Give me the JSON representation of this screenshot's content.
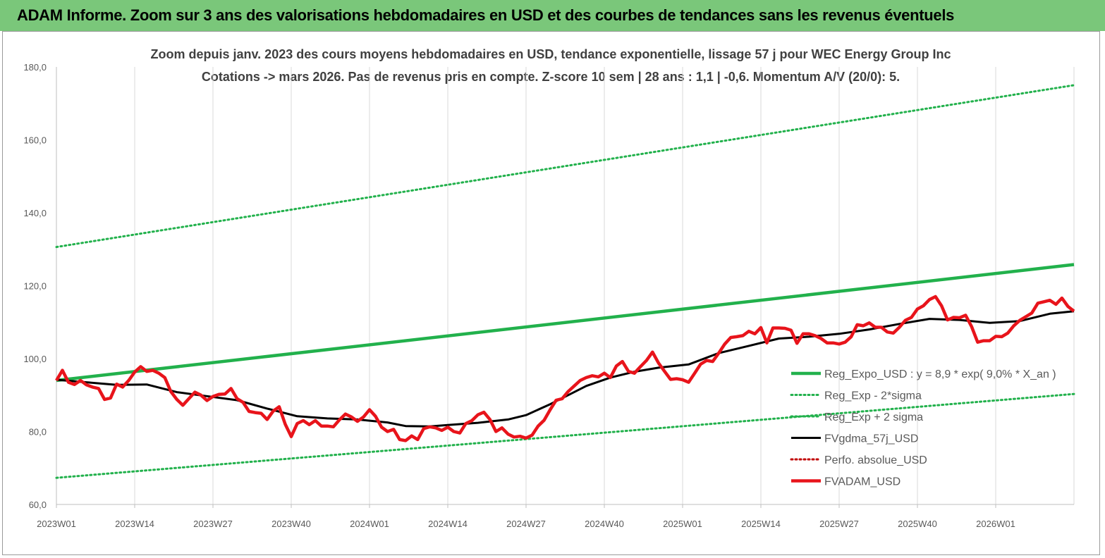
{
  "banner": {
    "title": "ADAM Informe. Zoom sur 3 ans des valorisations hebdomadaires en USD et des courbes de tendances sans les revenus éventuels"
  },
  "colors": {
    "banner_bg": "#7ac77a",
    "trend_green": "#22b14c",
    "dotted_green": "#22b14c",
    "gdma_black": "#000000",
    "perfo_red": "#c00000",
    "adam_red": "#e8141b",
    "grid": "#d9d9d9"
  },
  "chart_data": {
    "type": "line",
    "title_line1": "Zoom depuis janv. 2023 des cours moyens hebdomadaires en USD, tendance exponentielle, lissage 57 j pour WEC Energy Group Inc",
    "title_line2": "Cotations -> mars 2026. Pas de revenus pris en compte. Z-score 10 sem | 28 ans : 1,1 | -0,6. Momentum A/V (20/0): 5.",
    "ylim": [
      60,
      180
    ],
    "yticks": [
      "60,0",
      "80,0",
      "100,0",
      "120,0",
      "140,0",
      "160,0",
      "180,0"
    ],
    "ytick_values": [
      60,
      80,
      100,
      120,
      140,
      160,
      180
    ],
    "x_tick_labels": [
      "2023W01",
      "2023W14",
      "2023W27",
      "2023W40",
      "2024W01",
      "2024W14",
      "2024W27",
      "2024W40",
      "2025W01",
      "2025W14",
      "2025W27",
      "2025W40",
      "2026W01"
    ],
    "x_tick_weeks": [
      0,
      13,
      26,
      39,
      52,
      65,
      78,
      91,
      104,
      117,
      130,
      143,
      156
    ],
    "x_max_week": 169,
    "grid": "vertical",
    "legend_position": "right",
    "series": [
      {
        "name": "Reg_Expo_USD : y = 8,9 * exp( 9,0% *  X_an )",
        "style": "solid-thick",
        "color": "#22b14c",
        "points": [
          [
            0,
            94.0
          ],
          [
            169,
            125.8
          ]
        ]
      },
      {
        "name": "Reg_Exp - 2*sigma",
        "style": "dotted",
        "color": "#22b14c",
        "points": [
          [
            0,
            67.3
          ],
          [
            169,
            90.3
          ]
        ]
      },
      {
        "name": "Reg_Exp + 2 sigma",
        "style": "dotted",
        "color": "#22b14c",
        "points": [
          [
            0,
            130.6
          ],
          [
            169,
            175.0
          ]
        ]
      },
      {
        "name": "FVgdma_57j_USD",
        "style": "solid",
        "color": "#000000",
        "points": [
          [
            0,
            94.2
          ],
          [
            5,
            93.5
          ],
          [
            10,
            92.8
          ],
          [
            15,
            92.9
          ],
          [
            20,
            90.8
          ],
          [
            25,
            89.7
          ],
          [
            30,
            88.6
          ],
          [
            35,
            86.3
          ],
          [
            40,
            84.2
          ],
          [
            45,
            83.6
          ],
          [
            50,
            83.3
          ],
          [
            55,
            82.5
          ],
          [
            58,
            81.5
          ],
          [
            62,
            81.4
          ],
          [
            65,
            81.8
          ],
          [
            70,
            82.4
          ],
          [
            75,
            83.3
          ],
          [
            78,
            84.5
          ],
          [
            82,
            87.5
          ],
          [
            85,
            90.0
          ],
          [
            88,
            92.5
          ],
          [
            92,
            94.8
          ],
          [
            96,
            96.4
          ],
          [
            100,
            97.5
          ],
          [
            105,
            98.4
          ],
          [
            110,
            101.5
          ],
          [
            115,
            103.5
          ],
          [
            120,
            105.5
          ],
          [
            125,
            106.0
          ],
          [
            130,
            106.8
          ],
          [
            135,
            108.0
          ],
          [
            140,
            109.5
          ],
          [
            145,
            110.9
          ],
          [
            150,
            110.6
          ],
          [
            155,
            109.8
          ],
          [
            160,
            110.3
          ],
          [
            165,
            112.3
          ],
          [
            169,
            113.0
          ]
        ]
      },
      {
        "name": "Perfo. absolue_USD",
        "style": "dotted",
        "color": "#c00000",
        "points": []
      },
      {
        "name": "FVADAM_USD",
        "style": "solid-thick",
        "color": "#e8141b",
        "points": [
          [
            0,
            94.0
          ],
          [
            1,
            96.8
          ],
          [
            2,
            93.5
          ],
          [
            3,
            92.9
          ],
          [
            4,
            94.0
          ],
          [
            5,
            92.8
          ],
          [
            6,
            92.2
          ],
          [
            7,
            91.8
          ],
          [
            8,
            88.8
          ],
          [
            9,
            89.2
          ],
          [
            10,
            93.0
          ],
          [
            11,
            92.2
          ],
          [
            12,
            94.0
          ],
          [
            13,
            96.3
          ],
          [
            14,
            97.8
          ],
          [
            15,
            96.5
          ],
          [
            16,
            96.8
          ],
          [
            17,
            96.0
          ],
          [
            18,
            94.8
          ],
          [
            19,
            91.0
          ],
          [
            20,
            88.8
          ],
          [
            21,
            87.2
          ],
          [
            22,
            89.0
          ],
          [
            23,
            90.8
          ],
          [
            24,
            90.0
          ],
          [
            25,
            88.5
          ],
          [
            26,
            89.6
          ],
          [
            27,
            90.2
          ],
          [
            28,
            90.3
          ],
          [
            29,
            91.8
          ],
          [
            30,
            89.0
          ],
          [
            31,
            88.0
          ],
          [
            32,
            85.5
          ],
          [
            33,
            85.2
          ],
          [
            34,
            85.0
          ],
          [
            35,
            83.3
          ],
          [
            36,
            85.6
          ],
          [
            37,
            86.8
          ],
          [
            38,
            82.0
          ],
          [
            39,
            78.6
          ],
          [
            40,
            82.2
          ],
          [
            41,
            83.0
          ],
          [
            42,
            81.9
          ],
          [
            43,
            83.0
          ],
          [
            44,
            81.5
          ],
          [
            45,
            81.5
          ],
          [
            46,
            81.3
          ],
          [
            47,
            83.2
          ],
          [
            48,
            84.8
          ],
          [
            49,
            84.0
          ],
          [
            50,
            82.8
          ],
          [
            51,
            84.0
          ],
          [
            52,
            86.0
          ],
          [
            53,
            84.2
          ],
          [
            54,
            81.2
          ],
          [
            55,
            80.0
          ],
          [
            56,
            80.6
          ],
          [
            57,
            77.8
          ],
          [
            58,
            77.5
          ],
          [
            59,
            78.8
          ],
          [
            60,
            77.8
          ],
          [
            61,
            80.8
          ],
          [
            62,
            81.3
          ],
          [
            63,
            81.0
          ],
          [
            64,
            80.3
          ],
          [
            65,
            81.2
          ],
          [
            66,
            80.0
          ],
          [
            67,
            79.6
          ],
          [
            68,
            82.2
          ],
          [
            69,
            83.0
          ],
          [
            70,
            84.6
          ],
          [
            71,
            85.3
          ],
          [
            72,
            83.3
          ],
          [
            73,
            80.0
          ],
          [
            74,
            81.0
          ],
          [
            75,
            79.3
          ],
          [
            76,
            78.5
          ],
          [
            77,
            78.7
          ],
          [
            78,
            78.2
          ],
          [
            79,
            79.0
          ],
          [
            80,
            81.5
          ],
          [
            81,
            83.1
          ],
          [
            82,
            86.0
          ],
          [
            83,
            88.6
          ],
          [
            84,
            89.0
          ],
          [
            85,
            91.0
          ],
          [
            86,
            92.5
          ],
          [
            87,
            94.0
          ],
          [
            88,
            94.8
          ],
          [
            89,
            95.3
          ],
          [
            90,
            95.0
          ],
          [
            91,
            96.0
          ],
          [
            92,
            94.8
          ],
          [
            93,
            98.0
          ],
          [
            94,
            99.2
          ],
          [
            95,
            96.5
          ],
          [
            96,
            96.0
          ],
          [
            97,
            97.8
          ],
          [
            98,
            99.5
          ],
          [
            99,
            101.8
          ],
          [
            100,
            98.8
          ],
          [
            101,
            96.5
          ],
          [
            102,
            94.3
          ],
          [
            103,
            94.5
          ],
          [
            104,
            94.2
          ],
          [
            105,
            93.5
          ],
          [
            106,
            96.0
          ],
          [
            107,
            98.5
          ],
          [
            108,
            99.5
          ],
          [
            109,
            99.2
          ],
          [
            110,
            101.5
          ],
          [
            111,
            104.0
          ],
          [
            112,
            105.8
          ],
          [
            113,
            106.0
          ],
          [
            114,
            106.3
          ],
          [
            115,
            107.5
          ],
          [
            116,
            106.8
          ],
          [
            117,
            108.5
          ],
          [
            118,
            104.3
          ],
          [
            119,
            108.4
          ],
          [
            120,
            108.4
          ],
          [
            121,
            108.3
          ],
          [
            122,
            107.8
          ],
          [
            123,
            104.2
          ],
          [
            124,
            106.8
          ],
          [
            125,
            106.8
          ],
          [
            126,
            106.3
          ],
          [
            127,
            105.5
          ],
          [
            128,
            104.3
          ],
          [
            129,
            104.3
          ],
          [
            130,
            104.0
          ],
          [
            131,
            104.5
          ],
          [
            132,
            106.0
          ],
          [
            133,
            109.3
          ],
          [
            134,
            109.0
          ],
          [
            135,
            109.8
          ],
          [
            136,
            108.6
          ],
          [
            137,
            108.6
          ],
          [
            138,
            107.3
          ],
          [
            139,
            107.0
          ],
          [
            140,
            108.6
          ],
          [
            141,
            110.5
          ],
          [
            142,
            111.3
          ],
          [
            143,
            113.6
          ],
          [
            144,
            114.5
          ],
          [
            145,
            116.2
          ],
          [
            146,
            117.0
          ],
          [
            147,
            114.5
          ],
          [
            148,
            110.6
          ],
          [
            149,
            111.3
          ],
          [
            150,
            111.2
          ],
          [
            151,
            111.9
          ],
          [
            152,
            108.8
          ],
          [
            153,
            104.5
          ],
          [
            154,
            104.9
          ],
          [
            155,
            104.9
          ],
          [
            156,
            106.1
          ],
          [
            157,
            106.0
          ],
          [
            158,
            107.0
          ],
          [
            159,
            109.0
          ],
          [
            160,
            110.5
          ],
          [
            161,
            111.5
          ],
          [
            162,
            112.5
          ],
          [
            163,
            115.2
          ],
          [
            164,
            115.6
          ],
          [
            165,
            116.0
          ],
          [
            166,
            114.9
          ],
          [
            167,
            116.6
          ],
          [
            168,
            114.3
          ],
          [
            169,
            113.0
          ]
        ]
      }
    ]
  }
}
